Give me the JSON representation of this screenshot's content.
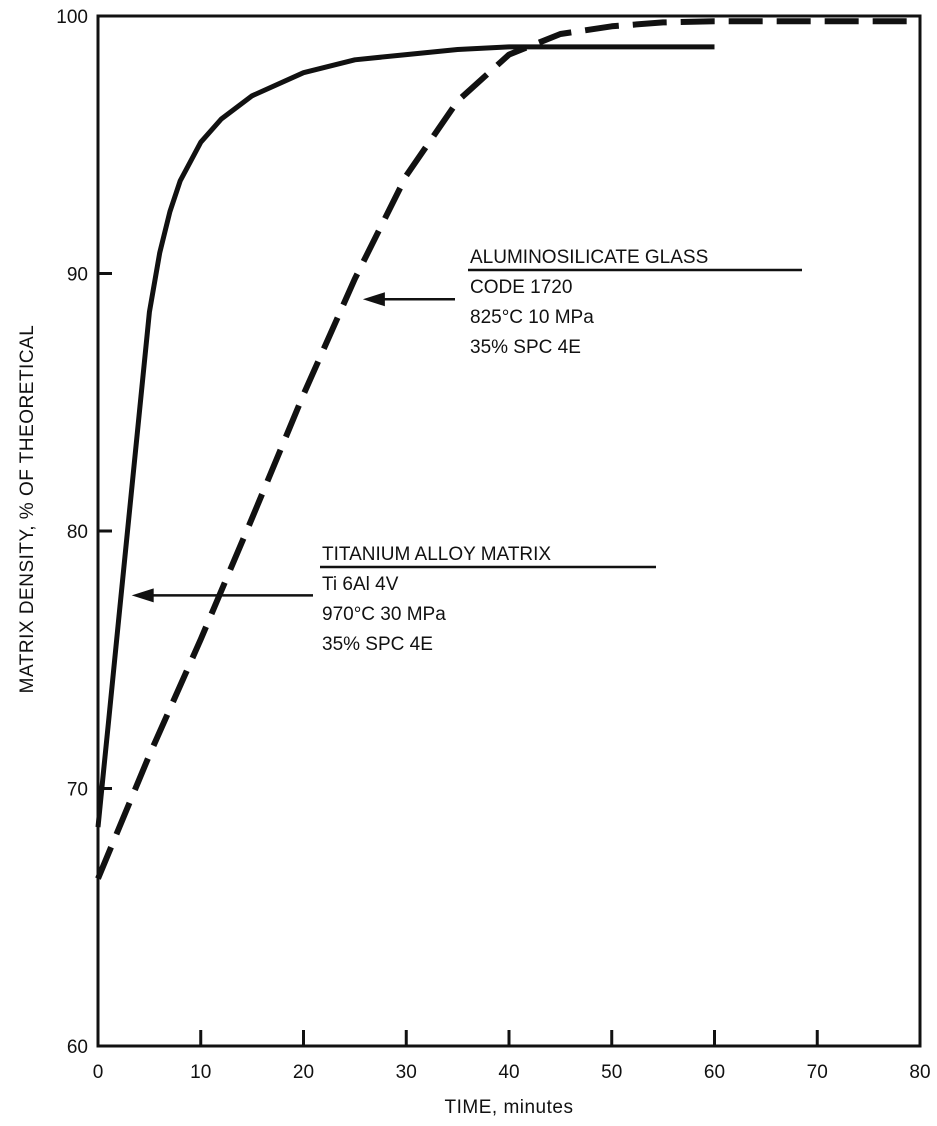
{
  "chart_data": {
    "type": "line",
    "xlabel": "TIME, minutes",
    "ylabel": "MATRIX DENSITY, % OF THEORETICAL",
    "xlim": [
      0,
      80
    ],
    "ylim": [
      60,
      100
    ],
    "x_ticks": [
      "0",
      "10",
      "20",
      "30",
      "40",
      "50",
      "60",
      "70",
      "80"
    ],
    "y_ticks": [
      "60",
      "70",
      "80",
      "90",
      "100"
    ],
    "grid": false,
    "series": [
      {
        "style": "solid",
        "x": [
          0,
          0.5,
          1,
          2,
          3,
          4,
          5,
          6,
          7,
          8,
          10,
          12,
          15,
          20,
          25,
          30,
          35,
          40,
          45,
          50,
          55,
          60
        ],
        "y": [
          68.5,
          70.5,
          72.5,
          76.5,
          80.5,
          84.5,
          88.5,
          90.8,
          92.4,
          93.6,
          95.1,
          96.0,
          96.9,
          97.8,
          98.3,
          98.5,
          98.7,
          98.8,
          98.8,
          98.8,
          98.8,
          98.8
        ]
      },
      {
        "style": "dashed",
        "x": [
          0,
          5,
          10,
          15,
          20,
          25,
          30,
          35,
          40,
          45,
          50,
          55,
          60,
          65,
          70,
          75,
          80
        ],
        "y": [
          66.5,
          71.3,
          75.8,
          80.5,
          85.3,
          89.8,
          93.8,
          96.7,
          98.5,
          99.3,
          99.6,
          99.75,
          99.8,
          99.8,
          99.8,
          99.8,
          99.8
        ]
      }
    ],
    "annotations": [
      {
        "lines": [
          "ALUMINOSILICATE GLASS",
          "CODE 1720",
          "825°C   10 MPa",
          "35% SPC 4E"
        ],
        "arrow_to": [
          25,
          89
        ]
      },
      {
        "lines": [
          "TITANIUM ALLOY MATRIX",
          "Ti 6Al 4V",
          "970°C   30 MPa",
          "35% SPC 4E"
        ],
        "arrow_to": [
          2.5,
          77.5
        ]
      }
    ]
  }
}
